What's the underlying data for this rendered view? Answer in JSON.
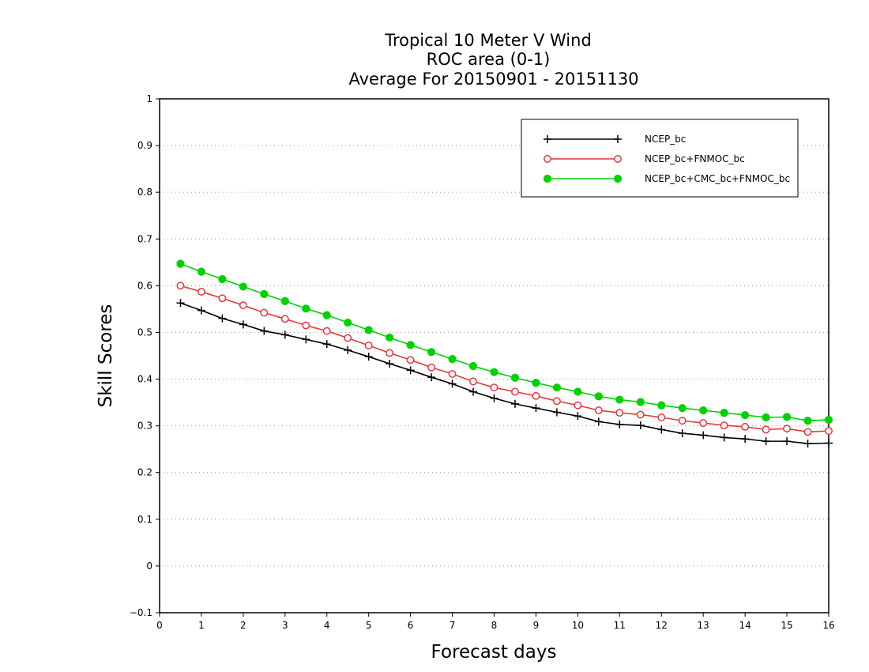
{
  "chart_data": {
    "type": "line",
    "title_lines": [
      "Tropical 10 Meter V Wind",
      "ROC area (0-1)",
      "Average For 20150901 - 20151130"
    ],
    "xlabel": "Forecast days",
    "ylabel": "Skill Scores",
    "xlim": [
      0,
      16
    ],
    "ylim": [
      -0.1,
      1
    ],
    "xticks": [
      "0",
      "1",
      "2",
      "3",
      "4",
      "5",
      "6",
      "7",
      "8",
      "9",
      "10",
      "11",
      "12",
      "13",
      "14",
      "15",
      "16"
    ],
    "yticks": [
      "−0.1",
      "0",
      "0.1",
      "0.2",
      "0.3",
      "0.4",
      "0.5",
      "0.6",
      "0.7",
      "0.8",
      "0.9",
      "1"
    ],
    "grid": "horizontal-dotted",
    "legend_position": "top-right",
    "x": [
      0.5,
      1,
      1.5,
      2,
      2.5,
      3,
      3.5,
      4,
      4.5,
      5,
      5.5,
      6,
      6.5,
      7,
      7.5,
      8,
      8.5,
      9,
      9.5,
      10,
      10.5,
      11,
      11.5,
      12,
      12.5,
      13,
      13.5,
      14,
      14.5,
      15,
      15.5,
      16
    ],
    "series": [
      {
        "name": "NCEP_bc",
        "color": "#000000",
        "marker": "plus",
        "values": [
          0.563,
          0.547,
          0.53,
          0.517,
          0.503,
          0.495,
          0.485,
          0.475,
          0.462,
          0.448,
          0.433,
          0.419,
          0.404,
          0.39,
          0.373,
          0.359,
          0.347,
          0.338,
          0.329,
          0.321,
          0.309,
          0.303,
          0.301,
          0.292,
          0.284,
          0.28,
          0.275,
          0.272,
          0.267,
          0.267,
          0.262,
          0.263
        ]
      },
      {
        "name": "NCEP_bc+FNMOC_bc",
        "color": "#e8373a",
        "marker": "open-circle",
        "values": [
          0.6,
          0.587,
          0.573,
          0.558,
          0.542,
          0.529,
          0.515,
          0.503,
          0.488,
          0.472,
          0.456,
          0.441,
          0.425,
          0.411,
          0.395,
          0.382,
          0.373,
          0.364,
          0.353,
          0.344,
          0.333,
          0.328,
          0.324,
          0.318,
          0.311,
          0.306,
          0.301,
          0.298,
          0.292,
          0.294,
          0.287,
          0.289
        ]
      },
      {
        "name": "NCEP_bc+CMC_bc+FNMOC_bc",
        "color": "#00d200",
        "marker": "filled-circle",
        "values": [
          0.647,
          0.63,
          0.614,
          0.598,
          0.582,
          0.567,
          0.551,
          0.537,
          0.521,
          0.505,
          0.489,
          0.473,
          0.458,
          0.443,
          0.428,
          0.415,
          0.403,
          0.392,
          0.382,
          0.373,
          0.363,
          0.356,
          0.351,
          0.344,
          0.338,
          0.333,
          0.328,
          0.323,
          0.318,
          0.319,
          0.311,
          0.313
        ]
      }
    ]
  }
}
